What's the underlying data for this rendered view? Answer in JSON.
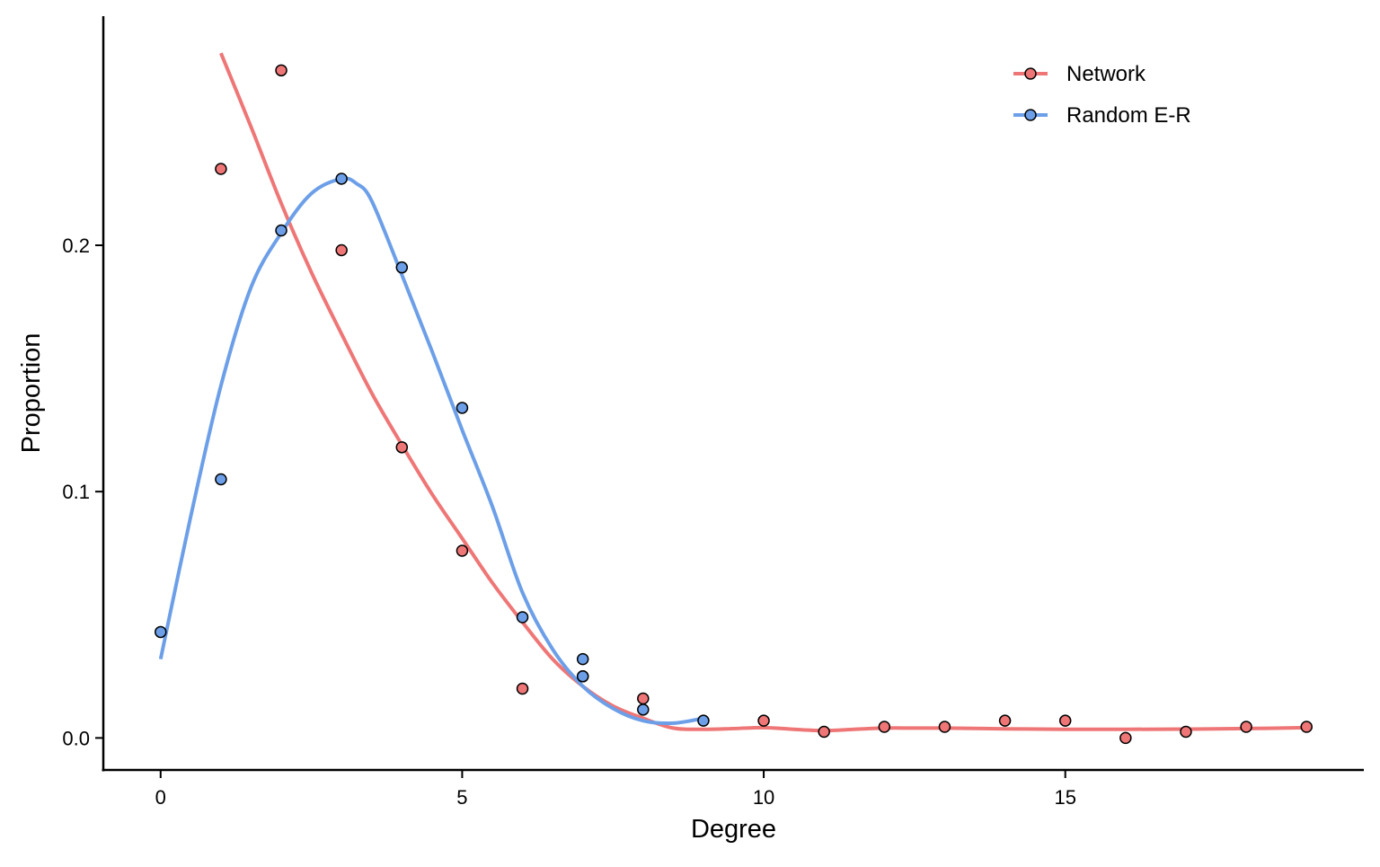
{
  "chart_data": {
    "type": "scatter",
    "title": "",
    "xlabel": "Degree",
    "ylabel": "Proportion",
    "xlim": [
      -0.95,
      19.95
    ],
    "ylim": [
      -0.013,
      0.293
    ],
    "x_ticks": [
      0,
      5,
      10,
      15
    ],
    "x_tick_labels": [
      "0",
      "5",
      "10",
      "15"
    ],
    "y_ticks": [
      0.0,
      0.1,
      0.2
    ],
    "y_tick_labels": [
      "0.0",
      "0.1",
      "0.2"
    ],
    "grid": false,
    "legend_position": "top-right",
    "series": [
      {
        "name": "Network",
        "color": "#ef7676",
        "x": [
          1,
          2,
          3,
          4,
          5,
          6,
          7,
          8,
          10,
          11,
          12,
          13,
          14,
          15,
          16,
          17,
          18,
          19
        ],
        "y": [
          0.231,
          0.271,
          0.198,
          0.118,
          0.076,
          0.02,
          0.025,
          0.016,
          0.007,
          0.0025,
          0.0045,
          0.0045,
          0.007,
          0.007,
          0.0,
          0.0025,
          0.0045,
          0.0045
        ],
        "smooth_x": [
          1,
          1.5,
          2,
          2.5,
          3,
          3.5,
          4,
          4.5,
          5,
          5.5,
          6,
          6.5,
          7,
          7.5,
          8,
          8.5,
          9,
          9.5,
          10,
          10.5,
          11,
          11.5,
          12,
          12.5,
          13,
          14,
          15,
          16,
          17,
          18,
          19
        ],
        "smooth_y": [
          0.278,
          0.248,
          0.217,
          0.189,
          0.164,
          0.14,
          0.119,
          0.099,
          0.081,
          0.063,
          0.047,
          0.032,
          0.021,
          0.013,
          0.008,
          0.004,
          0.0035,
          0.0038,
          0.0042,
          0.0035,
          0.003,
          0.0035,
          0.004,
          0.004,
          0.004,
          0.0037,
          0.0035,
          0.0035,
          0.0036,
          0.0038,
          0.0042
        ]
      },
      {
        "name": "Random E-R",
        "color": "#6c9fe8",
        "x": [
          0,
          1,
          2,
          3,
          4,
          5,
          6,
          7,
          7,
          8,
          9
        ],
        "y": [
          0.043,
          0.105,
          0.206,
          0.227,
          0.191,
          0.134,
          0.049,
          0.032,
          0.025,
          0.0115,
          0.007
        ],
        "smooth_x": [
          0,
          0.5,
          1,
          1.5,
          2,
          2.5,
          3,
          3.25,
          3.5,
          4,
          4.5,
          5,
          5.5,
          6,
          6.5,
          7,
          7.5,
          8,
          8.5,
          9
        ],
        "smooth_y": [
          0.032,
          0.09,
          0.143,
          0.183,
          0.205,
          0.221,
          0.227,
          0.225,
          0.218,
          0.188,
          0.157,
          0.125,
          0.094,
          0.059,
          0.036,
          0.021,
          0.012,
          0.007,
          0.006,
          0.008
        ]
      }
    ]
  }
}
